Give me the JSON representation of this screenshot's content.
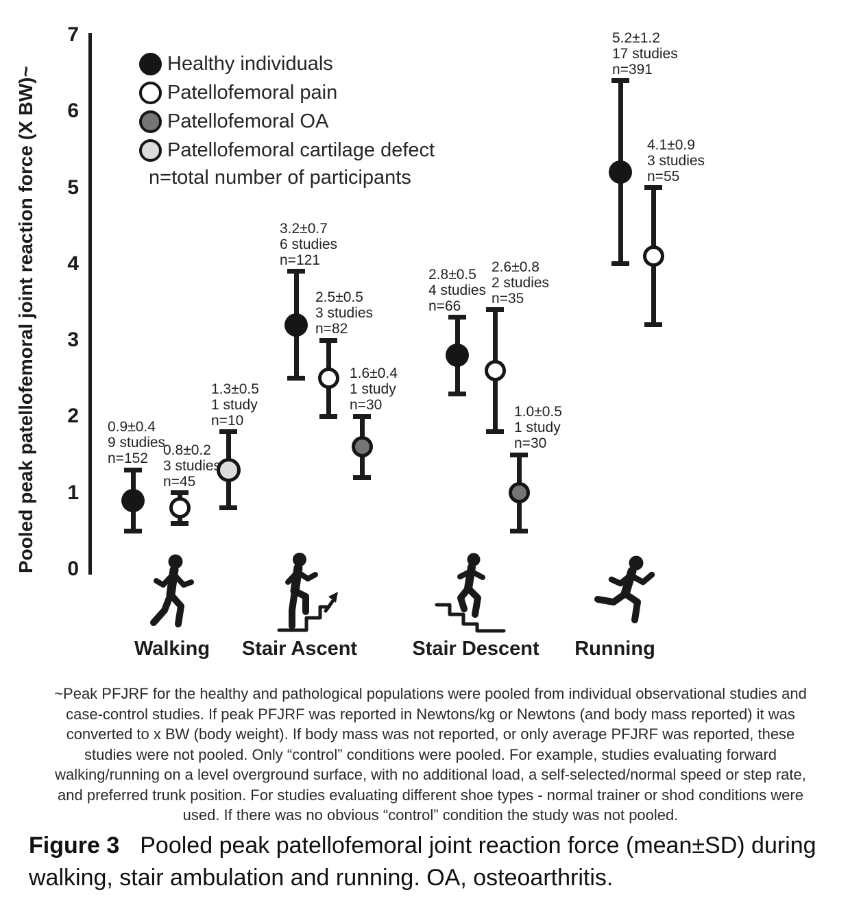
{
  "chart_data": {
    "type": "scatter",
    "title": "",
    "xlabel": "",
    "ylabel": "Pooled peak patellofemoral joint reaction force (X BW)~",
    "ylim": [
      0,
      7
    ],
    "yticks": [
      7,
      6,
      5,
      4,
      3,
      2,
      1,
      0
    ],
    "grid": "off",
    "legend_position": "top-left",
    "error_bars": "±SD",
    "populations": {
      "healthy": {
        "label": "Healthy individuals",
        "fill": "#161616",
        "border": "#161616"
      },
      "pfp": {
        "label": "Patellofemoral pain",
        "fill": "#ffffff",
        "border": "#161616"
      },
      "oa": {
        "label": "Patellofemoral OA",
        "fill": "#757575",
        "border": "#161616"
      },
      "cartilage": {
        "label": "Patellofemoral cartilage defect",
        "fill": "#dcdcdc",
        "border": "#161616"
      }
    },
    "legend_note": "n=total number of participants",
    "groups": [
      {
        "category": "Walking",
        "points": [
          {
            "pop": "healthy",
            "mean": 0.9,
            "sd": 0.4,
            "mean_sd": "0.9±0.4",
            "studies": "9 studies",
            "n": "n=152"
          },
          {
            "pop": "pfp",
            "mean": 0.8,
            "sd": 0.2,
            "mean_sd": "0.8±0.2",
            "studies": "3 studies",
            "n": "n=45"
          },
          {
            "pop": "cartilage",
            "mean": 1.3,
            "sd": 0.5,
            "mean_sd": "1.3±0.5",
            "studies": "1 study",
            "n": "n=10"
          }
        ]
      },
      {
        "category": "Stair Ascent",
        "points": [
          {
            "pop": "healthy",
            "mean": 3.2,
            "sd": 0.7,
            "mean_sd": "3.2±0.7",
            "studies": "6 studies",
            "n": "n=121"
          },
          {
            "pop": "pfp",
            "mean": 2.5,
            "sd": 0.5,
            "mean_sd": "2.5±0.5",
            "studies": "3 studies",
            "n": "n=82"
          },
          {
            "pop": "oa",
            "mean": 1.6,
            "sd": 0.4,
            "mean_sd": "1.6±0.4",
            "studies": "1 study",
            "n": "n=30"
          }
        ]
      },
      {
        "category": "Stair Descent",
        "points": [
          {
            "pop": "healthy",
            "mean": 2.8,
            "sd": 0.5,
            "mean_sd": "2.8±0.5",
            "studies": "4 studies",
            "n": "n=66"
          },
          {
            "pop": "pfp",
            "mean": 2.6,
            "sd": 0.8,
            "mean_sd": "2.6±0.8",
            "studies": "2 studies",
            "n": "n=35"
          },
          {
            "pop": "oa",
            "mean": 1.0,
            "sd": 0.5,
            "mean_sd": "1.0±0.5",
            "studies": "1 study",
            "n": "n=30"
          }
        ]
      },
      {
        "category": "Running",
        "points": [
          {
            "pop": "healthy",
            "mean": 5.2,
            "sd": 1.2,
            "mean_sd": "5.2±1.2",
            "studies": "17 studies",
            "n": "n=391"
          },
          {
            "pop": "pfp",
            "mean": 4.1,
            "sd": 0.9,
            "mean_sd": "4.1±0.9",
            "studies": "3 studies",
            "n": "n=55"
          }
        ]
      }
    ]
  },
  "footnote": "~Peak PFJRF for the healthy and pathological populations were pooled from individual observational studies and case-control studies. If peak PFJRF was reported in Newtons/kg or Newtons (and body mass reported) it was converted to x BW (body weight). If body mass was not reported, or only average PFJRF was reported, these studies were not pooled. Only “control” conditions were pooled. For example, studies evaluating forward walking/running on a level overground surface, with no additional load, a self-selected/normal speed or step rate, and preferred trunk position. For studies evaluating different shoe types - normal trainer or shod conditions were used. If there was no obvious “control” condition the study was not pooled.",
  "caption": {
    "label": "Figure 3",
    "text": "Pooled peak patellofemoral joint reaction force (mean±SD) during walking, stair ambulation and running. OA, osteoarthritis."
  }
}
